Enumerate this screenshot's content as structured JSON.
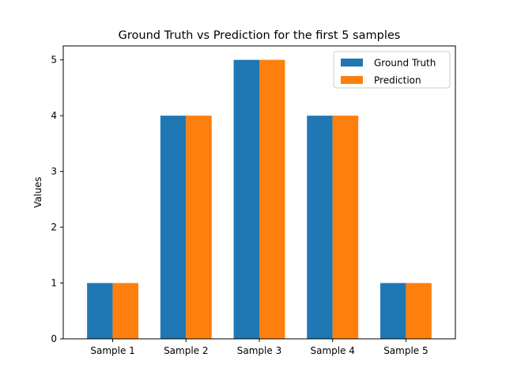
{
  "chart_data": {
    "type": "bar",
    "title": "Ground Truth vs Prediction for the first 5 samples",
    "xlabel": "",
    "ylabel": "Values",
    "categories": [
      "Sample 1",
      "Sample 2",
      "Sample 3",
      "Sample 4",
      "Sample 5"
    ],
    "series": [
      {
        "name": "Ground Truth",
        "values": [
          1,
          4,
          5,
          4,
          1
        ],
        "color": "#1f77b4"
      },
      {
        "name": "Prediction",
        "values": [
          1,
          4,
          5,
          4,
          1
        ],
        "color": "#ff7f0e"
      }
    ],
    "ylim": [
      0,
      5.25
    ],
    "yticks": [
      0,
      1,
      2,
      3,
      4,
      5
    ],
    "grid": false,
    "legend_position": "top-right"
  }
}
